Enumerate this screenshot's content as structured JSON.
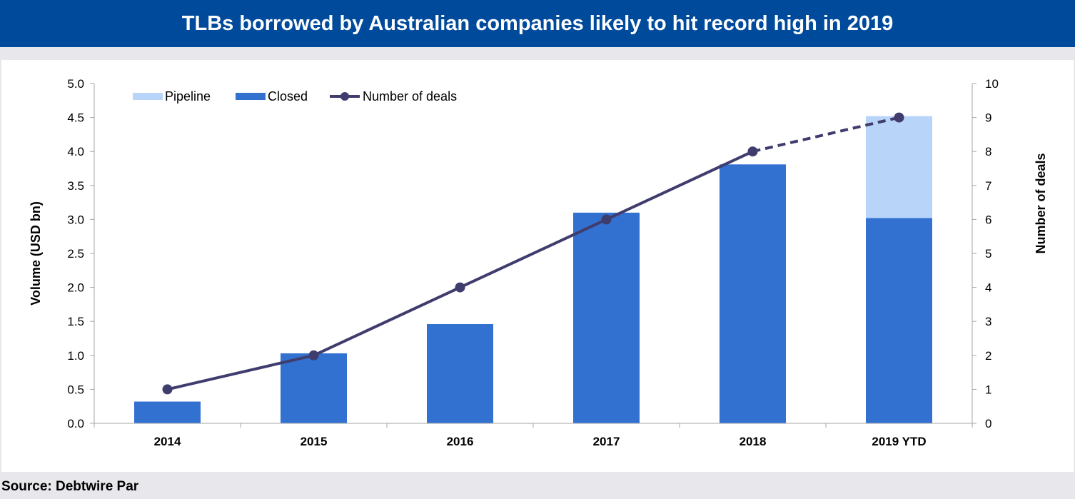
{
  "title": "TLBs borrowed by Australian companies likely to hit record high in 2019",
  "source": "Source: Debtwire Par",
  "chart_data": {
    "type": "bar",
    "categories": [
      "2014",
      "2015",
      "2016",
      "2017",
      "2018",
      "2019 YTD"
    ],
    "series": [
      {
        "name": "Closed",
        "kind": "bar",
        "axis": "left",
        "color": "#3371d1",
        "values": [
          0.32,
          1.03,
          1.46,
          3.1,
          3.81,
          3.02
        ]
      },
      {
        "name": "Pipeline",
        "kind": "bar",
        "axis": "left",
        "color": "#b8d4f8",
        "values": [
          0,
          0,
          0,
          0,
          0,
          1.5
        ]
      },
      {
        "name": "Number of deals",
        "kind": "line",
        "axis": "right",
        "color": "#3f3c6e",
        "values": [
          1,
          2,
          4,
          6,
          8,
          9
        ],
        "dashed_last_segment": true
      }
    ],
    "legend": [
      "Pipeline",
      "Closed",
      "Number of deals"
    ],
    "ylabel": "Volume (USD bn)",
    "y2label": "Number of deals",
    "ylim": [
      0,
      5
    ],
    "y2lim": [
      0,
      10
    ],
    "yticks": [
      "0.0",
      "0.5",
      "1.0",
      "1.5",
      "2.0",
      "2.5",
      "3.0",
      "3.5",
      "4.0",
      "4.5",
      "5.0"
    ],
    "y2ticks": [
      "0",
      "1",
      "2",
      "3",
      "4",
      "5",
      "6",
      "7",
      "8",
      "9",
      "10"
    ],
    "legend_position": "top-left",
    "grid": false
  }
}
